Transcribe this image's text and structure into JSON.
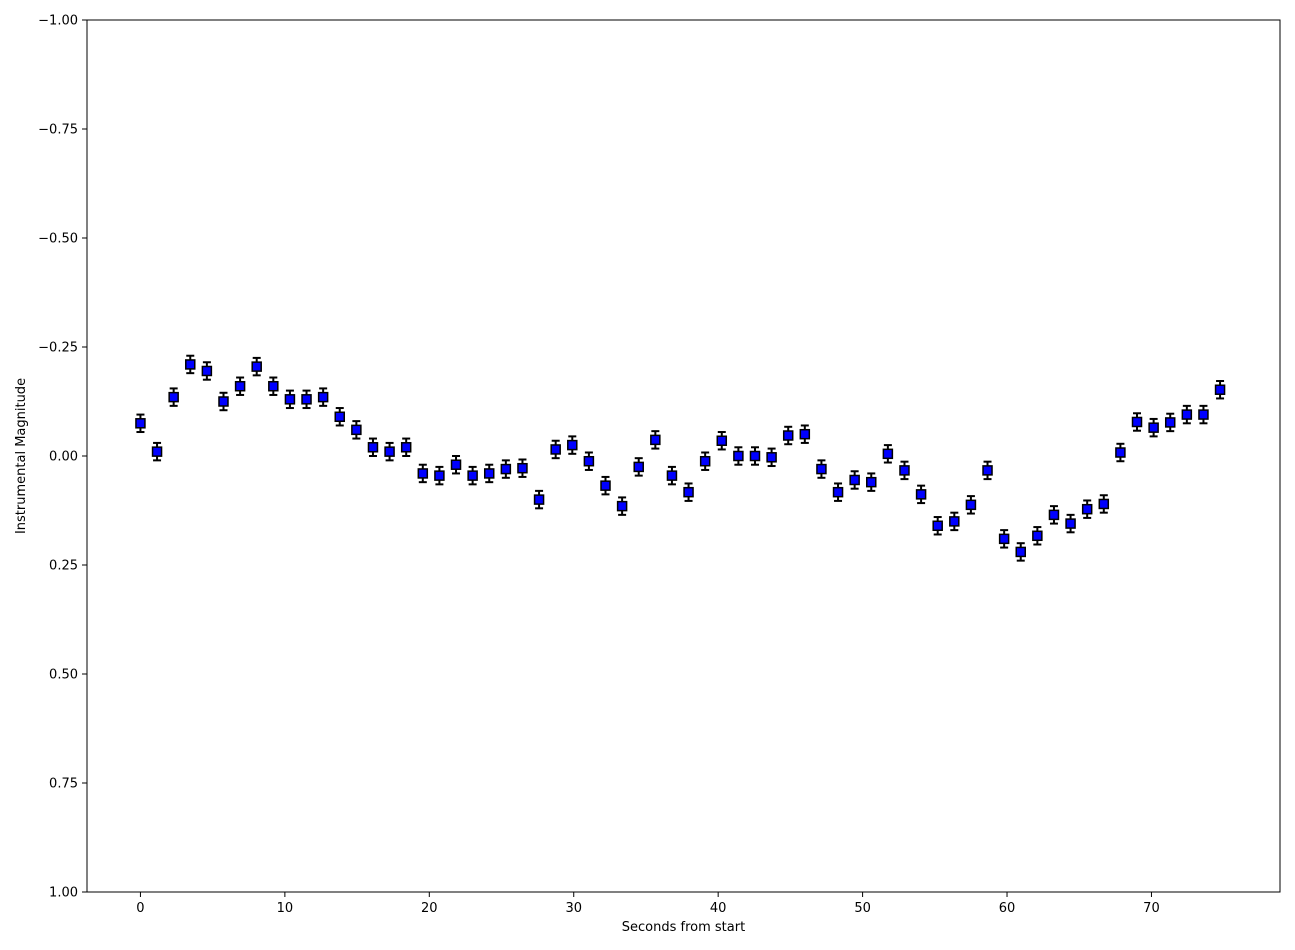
{
  "chart_data": {
    "type": "scatter",
    "title": "",
    "xlabel": "Seconds from start",
    "ylabel": "Instrumental Magnitude",
    "xlim": [
      -3.7,
      78.9
    ],
    "ylim": [
      1.0,
      -1.0
    ],
    "y_inverted": true,
    "grid": false,
    "legend": "none",
    "x_ticks": [
      0,
      10,
      20,
      30,
      40,
      50,
      60,
      70
    ],
    "x_tick_labels": [
      "0",
      "10",
      "20",
      "30",
      "40",
      "50",
      "60",
      "70"
    ],
    "y_ticks": [
      -1.0,
      -0.75,
      -0.5,
      -0.25,
      0.0,
      0.25,
      0.5,
      0.75,
      1.0
    ],
    "y_tick_labels": [
      "−1.00",
      "−0.75",
      "−0.50",
      "−0.25",
      "0.00",
      "0.25",
      "0.50",
      "0.75",
      "1.00"
    ],
    "marker": "square",
    "marker_color": "#0000ff",
    "marker_edge_color": "#000000",
    "error": 0.02,
    "series": [
      {
        "x": [
          0.0,
          1.15,
          2.3,
          3.45,
          4.6,
          5.75,
          6.9,
          8.05,
          9.2,
          10.35,
          11.5,
          12.65,
          13.8,
          14.95,
          16.1,
          17.25,
          18.4,
          19.55,
          20.7,
          21.85,
          23.0,
          24.15,
          25.3,
          26.45,
          27.6,
          28.75,
          29.9,
          31.05,
          32.2,
          33.35,
          34.5,
          35.65,
          36.8,
          37.95,
          39.1,
          40.25,
          41.4,
          42.55,
          43.7,
          44.85,
          46.0,
          47.15,
          48.3,
          49.45,
          50.6,
          51.75,
          52.9,
          54.05,
          55.2,
          56.35,
          57.5,
          58.65,
          59.8,
          60.95,
          62.1,
          63.25,
          64.4,
          65.55,
          66.7,
          67.85,
          69.0,
          70.15,
          71.3,
          72.45,
          73.6,
          74.75
        ],
        "y": [
          -0.075,
          -0.01,
          -0.135,
          -0.21,
          -0.195,
          -0.125,
          -0.16,
          -0.205,
          -0.16,
          -0.13,
          -0.13,
          -0.135,
          -0.09,
          -0.06,
          -0.02,
          -0.01,
          -0.02,
          0.04,
          0.045,
          0.02,
          0.045,
          0.04,
          0.03,
          0.028,
          0.1,
          -0.015,
          -0.025,
          0.012,
          0.068,
          0.115,
          0.025,
          -0.037,
          0.045,
          0.083,
          0.012,
          -0.035,
          0.0,
          0.0,
          0.003,
          -0.047,
          -0.05,
          0.03,
          0.083,
          0.055,
          0.06,
          -0.005,
          0.033,
          0.088,
          0.16,
          0.15,
          0.112,
          0.033,
          0.19,
          0.22,
          0.183,
          0.135,
          0.155,
          0.122,
          0.11,
          -0.008,
          -0.078,
          -0.065,
          -0.077,
          -0.095,
          -0.095,
          -0.152
        ]
      }
    ]
  }
}
